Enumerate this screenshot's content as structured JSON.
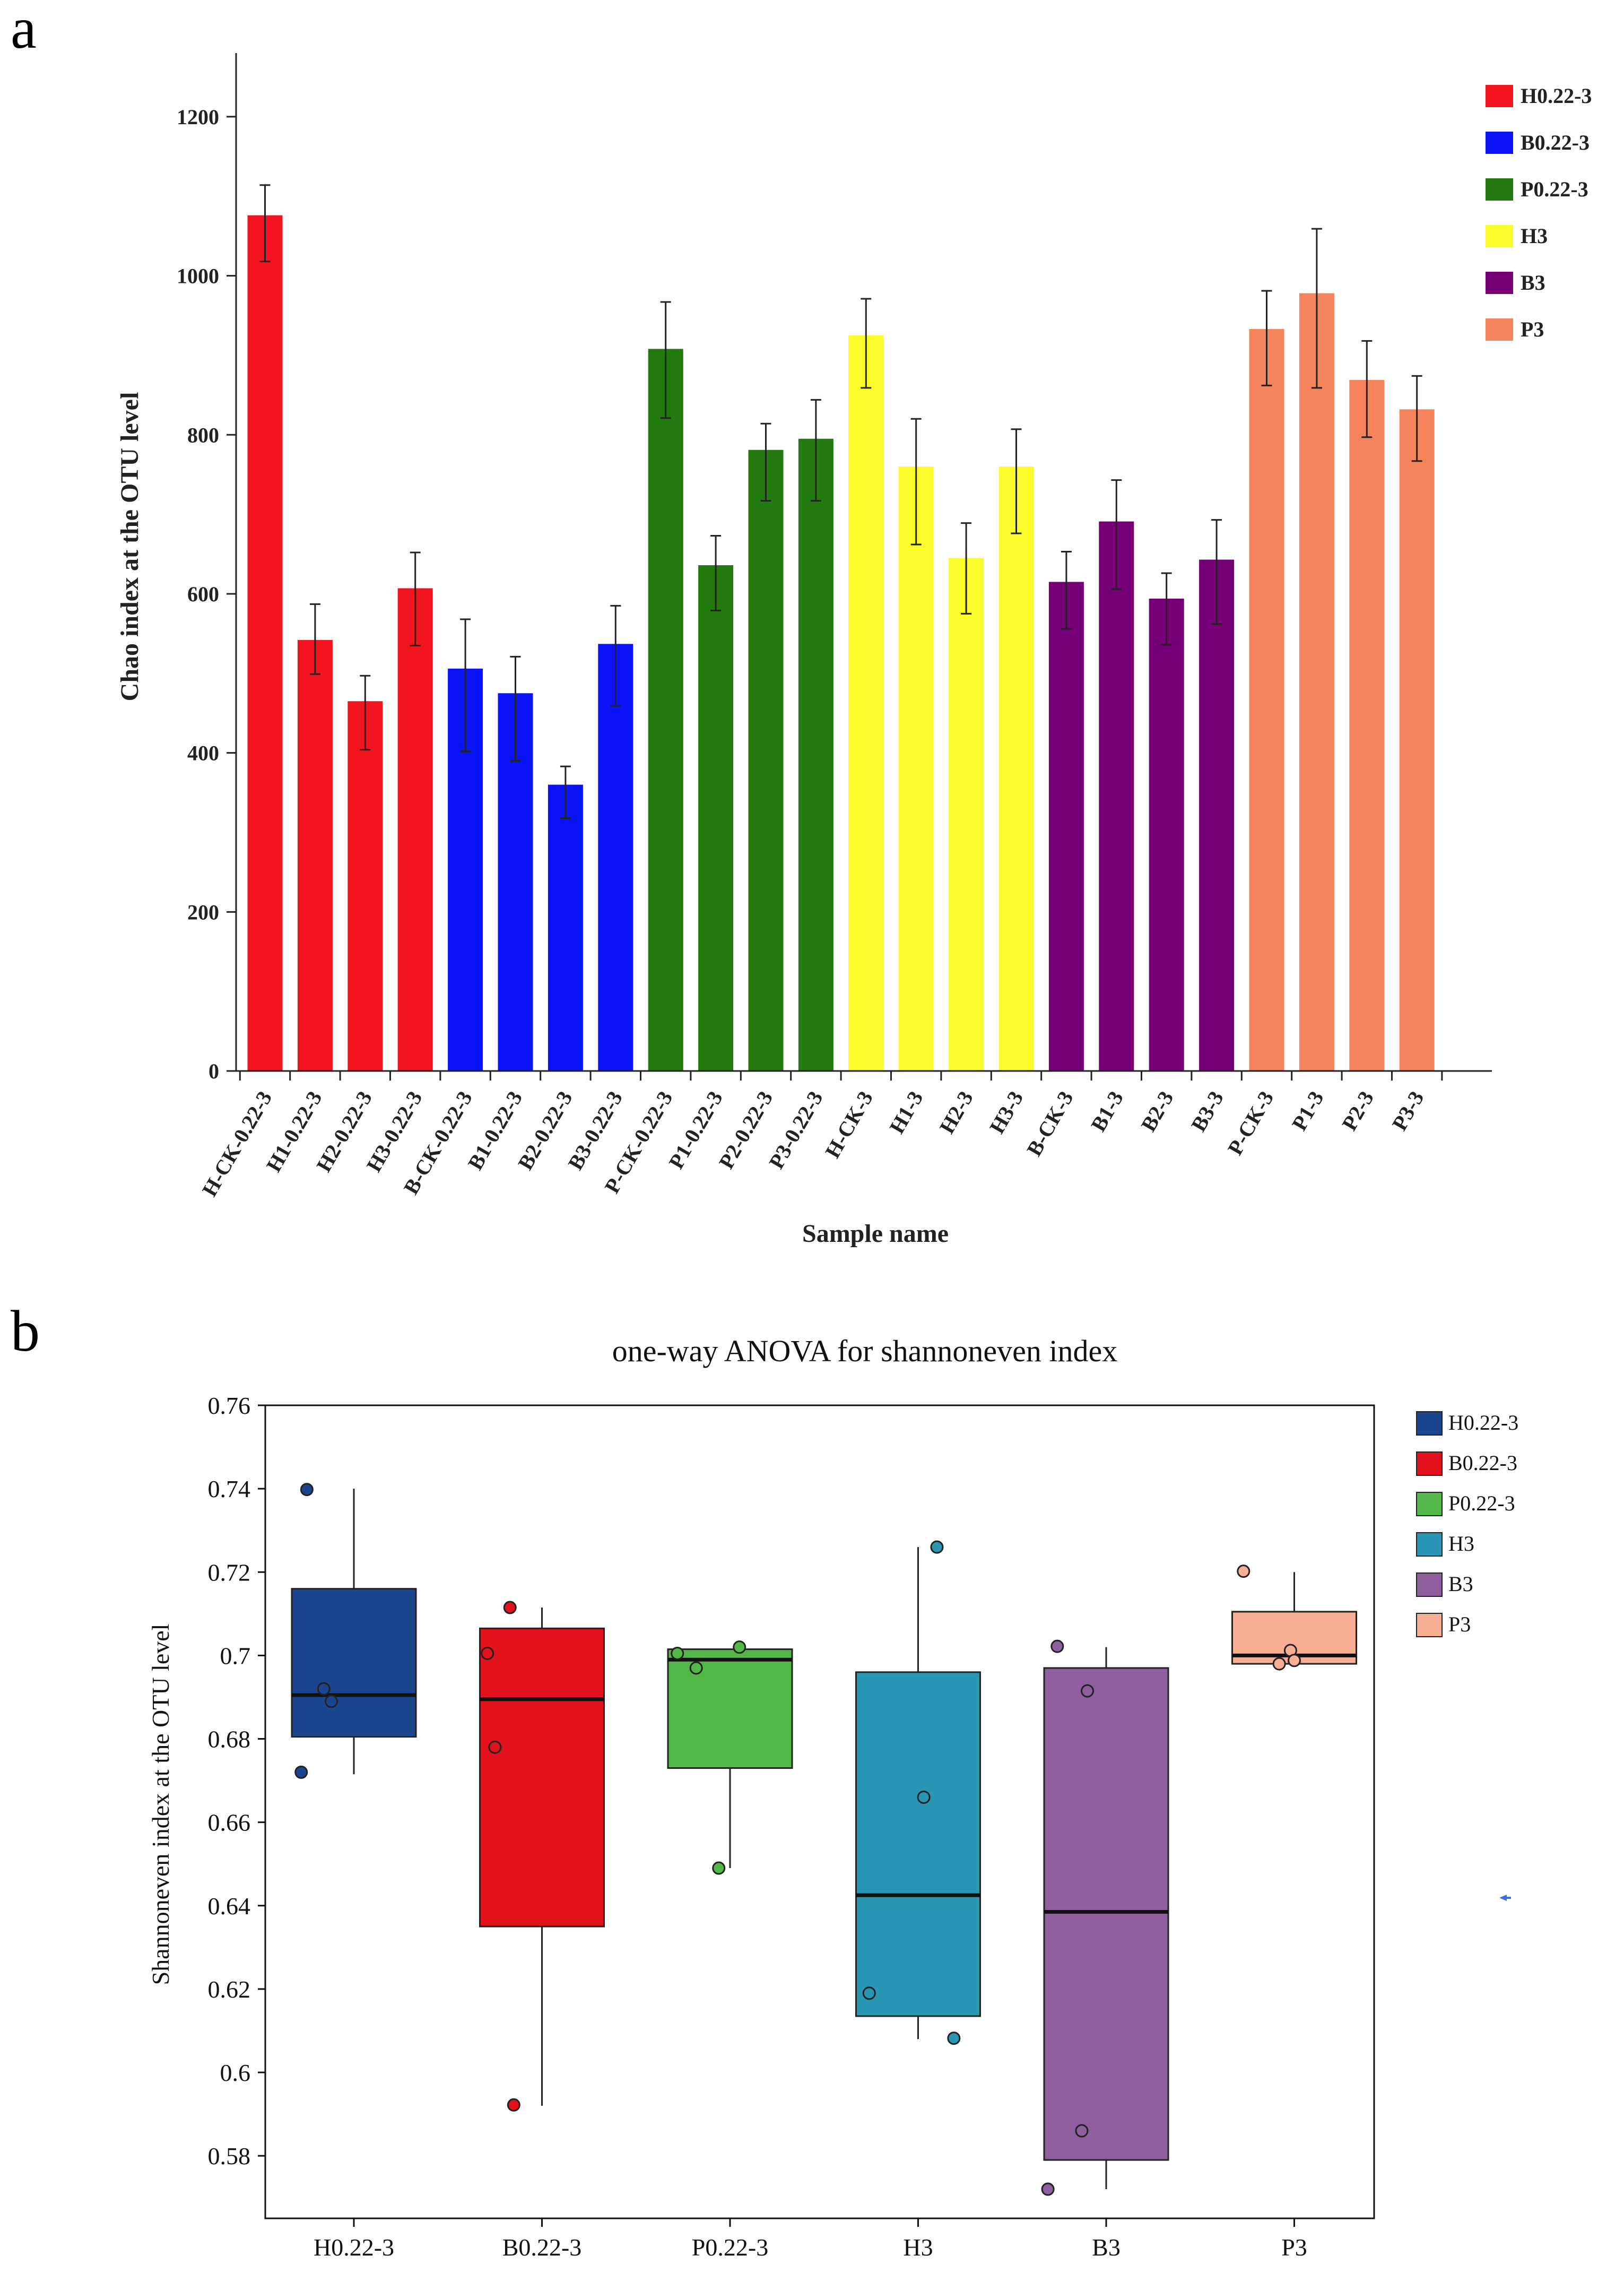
{
  "panels": {
    "a_label": "a",
    "b_label": "b"
  },
  "chart_data": [
    {
      "type": "bar",
      "panel": "a",
      "title": "",
      "xlabel": "Sample name",
      "ylabel": "Chao index at the OTU level",
      "ylim": [
        0,
        1280
      ],
      "yticks": [
        0,
        200,
        400,
        600,
        800,
        1000,
        1200
      ],
      "categories": [
        "H-CK-0.22-3",
        "H1-0.22-3",
        "H2-0.22-3",
        "H3-0.22-3",
        "B-CK-0.22-3",
        "B1-0.22-3",
        "B2-0.22-3",
        "B3-0.22-3",
        "P-CK-0.22-3",
        "P1-0.22-3",
        "P2-0.22-3",
        "P3-0.22-3",
        "H-CK-3",
        "H1-3",
        "H2-3",
        "H3-3",
        "B-CK-3",
        "B1-3",
        "B2-3",
        "B3-3",
        "P-CK-3",
        "P1-3",
        "P2-3",
        "P3-3"
      ],
      "values": [
        1076,
        542,
        465,
        607,
        506,
        475,
        360,
        537,
        908,
        636,
        781,
        795,
        925,
        760,
        645,
        760,
        615,
        691,
        594,
        643,
        933,
        978,
        869,
        832
      ],
      "err_high": [
        1114,
        587,
        497,
        652,
        568,
        521,
        383,
        585,
        967,
        673,
        814,
        844,
        971,
        820,
        689,
        807,
        653,
        743,
        626,
        693,
        981,
        1059,
        918,
        874
      ],
      "err_low": [
        1018,
        499,
        404,
        535,
        402,
        390,
        318,
        459,
        821,
        579,
        717,
        717,
        859,
        662,
        575,
        676,
        556,
        606,
        536,
        562,
        862,
        859,
        797,
        767
      ],
      "groups": [
        0,
        0,
        0,
        0,
        1,
        1,
        1,
        1,
        2,
        2,
        2,
        2,
        3,
        3,
        3,
        3,
        4,
        4,
        4,
        4,
        5,
        5,
        5,
        5
      ],
      "legend": [
        {
          "label": "H0.22-3",
          "color": "#f2141e"
        },
        {
          "label": "B0.22-3",
          "color": "#0a14f5"
        },
        {
          "label": "P0.22-3",
          "color": "#237a0e"
        },
        {
          "label": "H3",
          "color": "#fbfb2a"
        },
        {
          "label": "B3",
          "color": "#770078"
        },
        {
          "label": "P3",
          "color": "#f5845c"
        }
      ]
    },
    {
      "type": "box",
      "panel": "b",
      "title": "one-way ANOVA for shannoneven index",
      "xlabel": "",
      "ylabel": "Shannoneven index at the OTU level",
      "ylim": [
        0.565,
        0.76
      ],
      "yticks": [
        0.58,
        0.6,
        0.62,
        0.64,
        0.66,
        0.68,
        0.7,
        0.72,
        0.74,
        0.76
      ],
      "ytick_labels": [
        "0.58",
        "0.6",
        "0.62",
        "0.64",
        "0.66",
        "0.68",
        "0.7",
        "0.72",
        "0.74",
        "0.76"
      ],
      "categories": [
        "H0.22-3",
        "B0.22-3",
        "P0.22-3",
        "H3",
        "B3",
        "P3"
      ],
      "boxes": [
        {
          "whisker_low": 0.6715,
          "q1": 0.6805,
          "median": 0.6905,
          "q3": 0.716,
          "whisker_high": 0.74,
          "points": [
            [
              0.72,
              0.672
            ],
            [
              0.75,
              0.7398
            ],
            [
              0.84,
              0.692
            ],
            [
              0.88,
              0.689
            ]
          ]
        },
        {
          "whisker_low": 0.592,
          "q1": 0.635,
          "median": 0.6895,
          "q3": 0.7065,
          "whisker_high": 0.7115,
          "points": [
            [
              1.71,
              0.7005
            ],
            [
              1.75,
              0.678
            ],
            [
              1.83,
              0.7115
            ],
            [
              1.85,
              0.5922
            ]
          ]
        },
        {
          "whisker_low": 0.649,
          "q1": 0.673,
          "median": 0.699,
          "q3": 0.7015,
          "whisker_high": 0.7015,
          "points": [
            [
              2.72,
              0.7005
            ],
            [
              2.82,
              0.697
            ],
            [
              2.94,
              0.649
            ],
            [
              3.05,
              0.702
            ]
          ]
        },
        {
          "whisker_low": 0.608,
          "q1": 0.6135,
          "median": 0.6425,
          "q3": 0.696,
          "whisker_high": 0.726,
          "points": [
            [
              3.74,
              0.619
            ],
            [
              4.03,
              0.666
            ],
            [
              4.1,
              0.726
            ],
            [
              4.19,
              0.6082
            ]
          ]
        },
        {
          "whisker_low": 0.572,
          "q1": 0.579,
          "median": 0.6385,
          "q3": 0.697,
          "whisker_high": 0.702,
          "points": [
            [
              4.69,
              0.572
            ],
            [
              4.74,
              0.7022
            ],
            [
              4.87,
              0.586
            ],
            [
              4.9,
              0.6915
            ]
          ]
        },
        {
          "whisker_low": 0.698,
          "q1": 0.698,
          "median": 0.7,
          "q3": 0.7105,
          "whisker_high": 0.72,
          "points": [
            [
              5.73,
              0.7202
            ],
            [
              5.92,
              0.698
            ],
            [
              5.98,
              0.7012
            ],
            [
              6.0,
              0.6988
            ]
          ]
        }
      ],
      "legend": [
        {
          "label": "H0.22-3",
          "color": "#1b468f"
        },
        {
          "label": "B0.22-3",
          "color": "#e2111c"
        },
        {
          "label": "P0.22-3",
          "color": "#52b847"
        },
        {
          "label": "H3",
          "color": "#2997b3"
        },
        {
          "label": "B3",
          "color": "#8e5e9e"
        },
        {
          "label": "P3",
          "color": "#f8ae92"
        }
      ]
    }
  ]
}
